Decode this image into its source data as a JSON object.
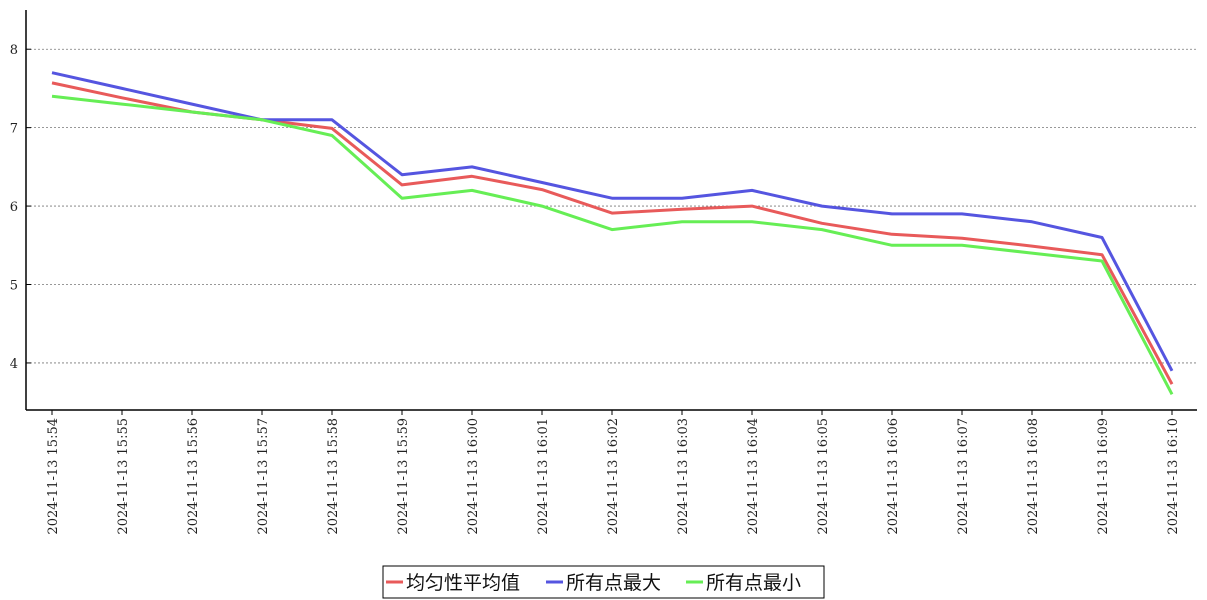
{
  "chart_data": {
    "type": "line",
    "title": "",
    "xlabel": "",
    "ylabel": "",
    "ylim": [
      3.4,
      8.5
    ],
    "yticks": [
      4,
      5,
      6,
      7,
      8
    ],
    "grid": "horizontal-dotted",
    "legend_position": "bottom-center",
    "x": [
      "2024-11-13 15:54",
      "2024-11-13 15:55",
      "2024-11-13 15:56",
      "2024-11-13 15:57",
      "2024-11-13 15:58",
      "2024-11-13 15:59",
      "2024-11-13 16:00",
      "2024-11-13 16:01",
      "2024-11-13 16:02",
      "2024-11-13 16:03",
      "2024-11-13 16:04",
      "2024-11-13 16:05",
      "2024-11-13 16:06",
      "2024-11-13 16:07",
      "2024-11-13 16:08",
      "2024-11-13 16:09",
      "2024-11-13 16:10"
    ],
    "series": [
      {
        "name": "均匀性平均值",
        "color": "#e85a5a",
        "values": [
          7.57,
          7.38,
          7.2,
          7.1,
          6.99,
          6.27,
          6.38,
          6.21,
          5.91,
          5.96,
          6.0,
          5.78,
          5.64,
          5.59,
          5.49,
          5.38,
          3.73
        ]
      },
      {
        "name": "所有点最大",
        "color": "#5555e0",
        "values": [
          7.7,
          7.5,
          7.3,
          7.1,
          7.1,
          6.4,
          6.5,
          6.3,
          6.1,
          6.1,
          6.2,
          6.0,
          5.9,
          5.9,
          5.8,
          5.6,
          3.9
        ]
      },
      {
        "name": "所有点最小",
        "color": "#66ee55",
        "values": [
          7.4,
          7.3,
          7.2,
          7.1,
          6.9,
          6.1,
          6.2,
          6.0,
          5.7,
          5.8,
          5.8,
          5.7,
          5.5,
          5.5,
          5.4,
          5.3,
          3.6
        ]
      }
    ]
  }
}
